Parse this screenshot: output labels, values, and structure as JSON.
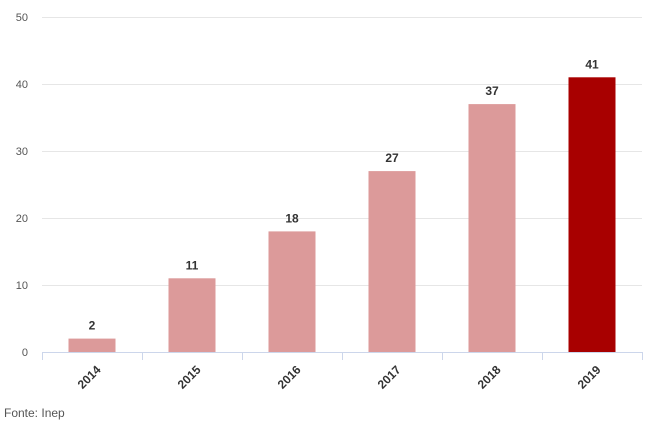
{
  "chart_data": {
    "type": "bar",
    "categories": [
      "2014",
      "2015",
      "2016",
      "2017",
      "2018",
      "2019"
    ],
    "values": [
      2,
      11,
      18,
      27,
      37,
      41
    ],
    "ylim": [
      0,
      50
    ],
    "yticks": [
      0,
      10,
      20,
      30,
      40,
      50
    ],
    "grid": true,
    "legend": "none",
    "colors": {
      "default_bar": "#dc9a9a",
      "highlight_bar": "#a80000",
      "grid": "#e6e6e6",
      "axis": "#ccd6eb"
    },
    "highlight_index": 5
  },
  "source": "Fonte: Inep"
}
